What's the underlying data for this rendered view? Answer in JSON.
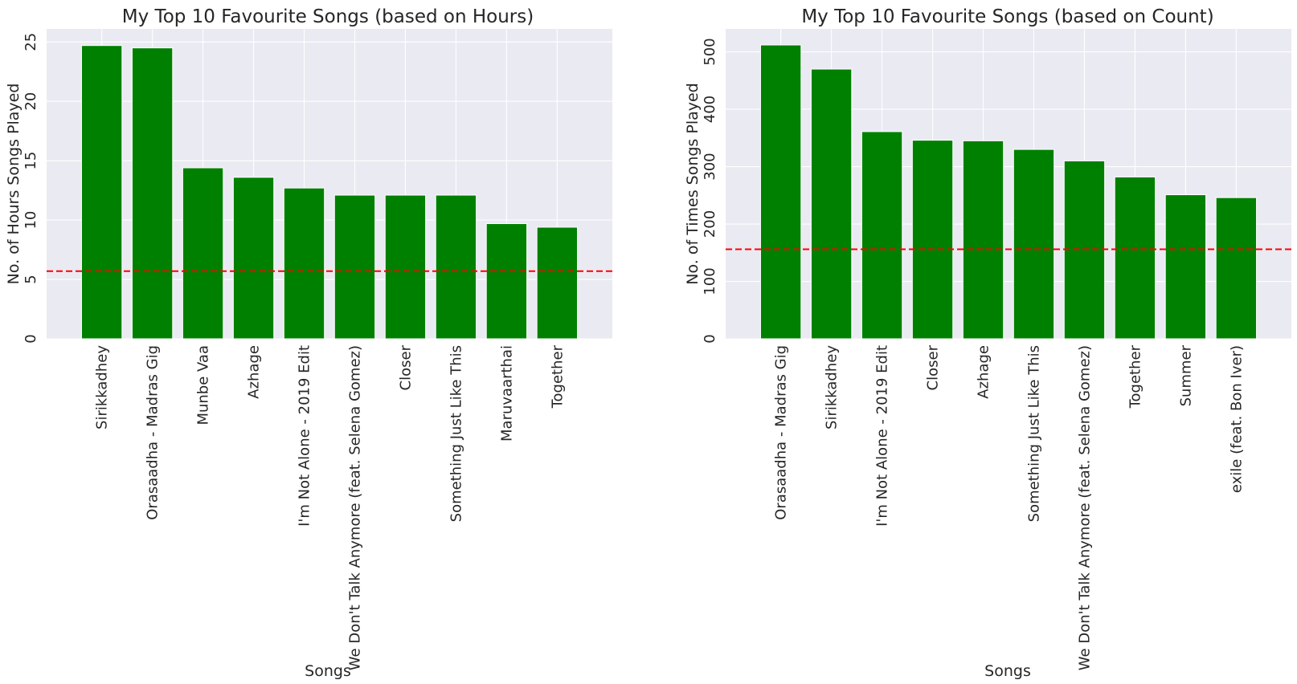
{
  "chart_data": [
    {
      "type": "bar",
      "title": "My Top 10 Favourite Songs (based on Hours)",
      "xlabel": "Songs",
      "ylabel": "No. of Hours Songs Played",
      "categories": [
        "Sirikkadhey",
        "Orasaadha - Madras Gig",
        "Munbe Vaa",
        "Azhage",
        "I'm Not Alone - 2019 Edit",
        "We Don't Talk Anymore (feat. Selena Gomez)",
        "Closer",
        "Something Just Like This",
        "Maruvaarthai",
        "Together"
      ],
      "values": [
        24.7,
        24.5,
        14.4,
        13.6,
        12.7,
        12.1,
        12.1,
        12.1,
        9.7,
        9.4
      ],
      "reference_line": 5.7,
      "ylim": [
        0,
        26.1
      ],
      "yticks": [
        0,
        5,
        10,
        15,
        20,
        25
      ],
      "ytick_labels": [
        "0",
        "5",
        "10",
        "15",
        "20",
        "25"
      ],
      "bar_color": "#008000",
      "reference_line_color": "#ff0000",
      "grid": true
    },
    {
      "type": "bar",
      "title": "My Top 10 Favourite Songs (based on Count)",
      "xlabel": "Songs",
      "ylabel": "No. of Times Songs Played",
      "categories": [
        "Orasaadha - Madras Gig",
        "Sirikkadhey",
        "I'm Not Alone - 2019 Edit",
        "Closer",
        "Azhage",
        "Something Just Like This",
        "We Don't Talk Anymore (feat. Selena Gomez)",
        "Together",
        "Summer",
        "exile (feat. Bon Iver)"
      ],
      "values": [
        512,
        470,
        361,
        346,
        345,
        330,
        310,
        282,
        251,
        246
      ],
      "reference_line": 156,
      "ylim": [
        0,
        540
      ],
      "yticks": [
        0,
        100,
        200,
        300,
        400,
        500
      ],
      "ytick_labels": [
        "0",
        "100",
        "200",
        "300",
        "400",
        "500"
      ],
      "bar_color": "#008000",
      "reference_line_color": "#ff0000",
      "grid": true
    }
  ]
}
